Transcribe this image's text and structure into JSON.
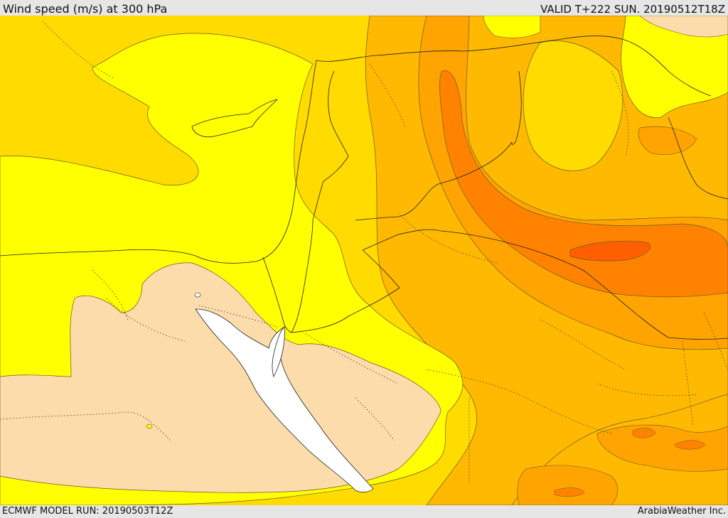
{
  "header": {
    "title": "Wind speed (m/s) at 300 hPa",
    "valid": "VALID T+222 SUN. 20190512T18Z"
  },
  "footer": {
    "model_run": "ECMWF MODEL RUN: 20190503T12Z",
    "credit": "ArabiaWeather Inc."
  },
  "palette": {
    "pale": "#fcdcaa",
    "yellow": "#ffff00",
    "gold": "#ffdb00",
    "amber": "#ffb900",
    "orange": "#ffa400",
    "deep_orange": "#ff8200",
    "red_orange": "#ff5f00",
    "sea": "#ffffff"
  }
}
